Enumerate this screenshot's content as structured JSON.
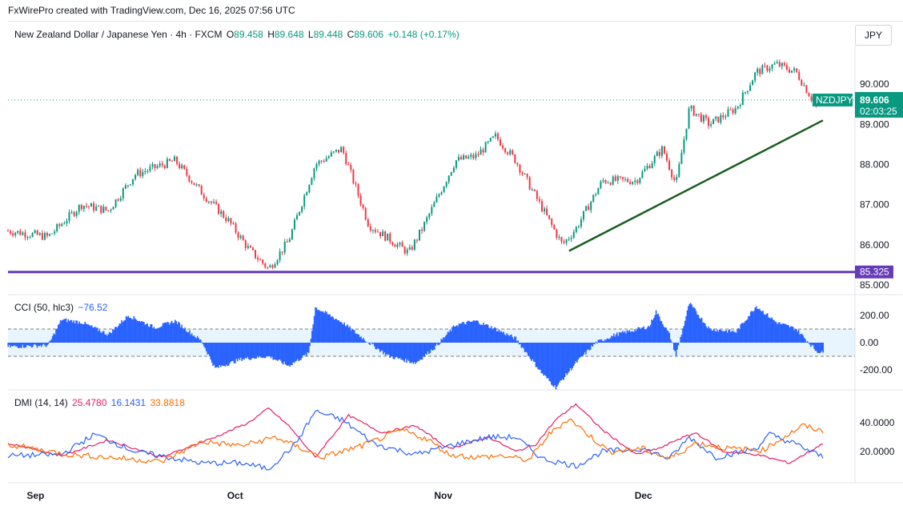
{
  "header": "FxWirePro created with TradingView.com, Dec 16, 2025 07:56 UTC",
  "legend": {
    "name": "New Zealand Dollar / Japanese Yen · 4h · FXCM",
    "o_label": "O",
    "o": "89.458",
    "h_label": "H",
    "h": "89.648",
    "l_label": "L",
    "l": "89.448",
    "c_label": "C",
    "c": "89.606",
    "chg": "+0.148 (+0.17%)"
  },
  "currency_button": "JPY",
  "colors": {
    "up": "#089981",
    "down": "#f23645",
    "support": "#673ab7",
    "trend": "#1b5e20",
    "cci": "#2962ff",
    "plus_di": "#2962ff",
    "minus_di": "#e91e63",
    "adx": "#ff6d00"
  },
  "chart_data": [
    {
      "type": "candlestick",
      "symbol": "NZDJPY",
      "timeframe": "4h",
      "ylim": [
        85.0,
        91.0
      ],
      "yticks": [
        "90.000",
        "89.000",
        "88.000",
        "87.000",
        "86.000",
        "85.000"
      ],
      "x_labels": [
        "Sep",
        "Oct",
        "Nov",
        "Dec"
      ],
      "last_price": "89.606",
      "last_label": "NZDJPY",
      "countdown": "02:03:25",
      "support_level": "85.325",
      "anchors": [
        {
          "date": "2025-08-28",
          "price": 86.35
        },
        {
          "date": "2025-09-03",
          "price": 86.2
        },
        {
          "date": "2025-09-08",
          "price": 87.0
        },
        {
          "date": "2025-09-12",
          "price": 86.85
        },
        {
          "date": "2025-09-16",
          "price": 87.75
        },
        {
          "date": "2025-09-22",
          "price": 88.1
        },
        {
          "date": "2025-09-26",
          "price": 87.3
        },
        {
          "date": "2025-09-30",
          "price": 86.6
        },
        {
          "date": "2025-10-03",
          "price": 85.9
        },
        {
          "date": "2025-10-06",
          "price": 85.4
        },
        {
          "date": "2025-10-09",
          "price": 86.1
        },
        {
          "date": "2025-10-13",
          "price": 88.0
        },
        {
          "date": "2025-10-17",
          "price": 88.4
        },
        {
          "date": "2025-10-21",
          "price": 86.5
        },
        {
          "date": "2025-10-27",
          "price": 85.8
        },
        {
          "date": "2025-10-29",
          "price": 86.4
        },
        {
          "date": "2025-11-03",
          "price": 88.1
        },
        {
          "date": "2025-11-06",
          "price": 88.2
        },
        {
          "date": "2025-11-09",
          "price": 88.7
        },
        {
          "date": "2025-11-12",
          "price": 88.1
        },
        {
          "date": "2025-11-16",
          "price": 86.9
        },
        {
          "date": "2025-11-19",
          "price": 86.0
        },
        {
          "date": "2025-11-21",
          "price": 86.4
        },
        {
          "date": "2025-11-25",
          "price": 87.6
        },
        {
          "date": "2025-11-30",
          "price": 87.6
        },
        {
          "date": "2025-12-04",
          "price": 88.4
        },
        {
          "date": "2025-12-06",
          "price": 87.5
        },
        {
          "date": "2025-12-08",
          "price": 89.4
        },
        {
          "date": "2025-12-11",
          "price": 89.0
        },
        {
          "date": "2025-12-15",
          "price": 89.4
        },
        {
          "date": "2025-12-18",
          "price": 90.3
        },
        {
          "date": "2025-12-21",
          "price": 90.5
        },
        {
          "date": "2025-12-24",
          "price": 90.3
        },
        {
          "date": "2025-12-27",
          "price": 89.45
        },
        {
          "date": "2025-12-28",
          "price": 89.6
        }
      ],
      "trendline": [
        {
          "date": "2025-11-20",
          "price": 85.85
        },
        {
          "date": "2025-12-28",
          "price": 89.1
        }
      ]
    },
    {
      "type": "histogram",
      "indicator": "CCI (50, hlc3)",
      "label": "CCI (50, hlc3)",
      "value": "−76.52",
      "ylim": [
        -330,
        330
      ],
      "yticks": [
        "200.00",
        "0.00",
        "-200.00"
      ],
      "bands": [
        100,
        -100
      ],
      "anchors": [
        {
          "date": "2025-08-28",
          "value": -30
        },
        {
          "date": "2025-09-03",
          "value": -20
        },
        {
          "date": "2025-09-05",
          "value": 170
        },
        {
          "date": "2025-09-08",
          "value": 150
        },
        {
          "date": "2025-09-12",
          "value": 60
        },
        {
          "date": "2025-09-15",
          "value": 200
        },
        {
          "date": "2025-09-19",
          "value": 110
        },
        {
          "date": "2025-09-22",
          "value": 160
        },
        {
          "date": "2025-09-26",
          "value": 10
        },
        {
          "date": "2025-09-28",
          "value": -190
        },
        {
          "date": "2025-10-02",
          "value": -120
        },
        {
          "date": "2025-10-06",
          "value": -100
        },
        {
          "date": "2025-10-09",
          "value": -170
        },
        {
          "date": "2025-10-12",
          "value": -80
        },
        {
          "date": "2025-10-13",
          "value": 260
        },
        {
          "date": "2025-10-17",
          "value": 150
        },
        {
          "date": "2025-10-21",
          "value": 0
        },
        {
          "date": "2025-10-24",
          "value": -100
        },
        {
          "date": "2025-10-28",
          "value": -150
        },
        {
          "date": "2025-10-31",
          "value": -30
        },
        {
          "date": "2025-11-03",
          "value": 130
        },
        {
          "date": "2025-11-06",
          "value": 160
        },
        {
          "date": "2025-11-09",
          "value": 100
        },
        {
          "date": "2025-11-12",
          "value": 30
        },
        {
          "date": "2025-11-16",
          "value": -230
        },
        {
          "date": "2025-11-18",
          "value": -330
        },
        {
          "date": "2025-11-21",
          "value": -150
        },
        {
          "date": "2025-11-24",
          "value": 0
        },
        {
          "date": "2025-11-27",
          "value": 60
        },
        {
          "date": "2025-12-02",
          "value": 120
        },
        {
          "date": "2025-12-03",
          "value": 230
        },
        {
          "date": "2025-12-05",
          "value": 60
        },
        {
          "date": "2025-12-06",
          "value": -90
        },
        {
          "date": "2025-12-08",
          "value": 290
        },
        {
          "date": "2025-12-11",
          "value": 100
        },
        {
          "date": "2025-12-15",
          "value": 80
        },
        {
          "date": "2025-12-18",
          "value": 270
        },
        {
          "date": "2025-12-21",
          "value": 150
        },
        {
          "date": "2025-12-24",
          "value": 100
        },
        {
          "date": "2025-12-27",
          "value": -60
        },
        {
          "date": "2025-12-28",
          "value": -77
        }
      ]
    },
    {
      "type": "line",
      "indicator": "DMI (14, 14)",
      "label": "DMI (14, 14)",
      "values_text": [
        "25.4780",
        "16.1431",
        "33.8818"
      ],
      "ylim": [
        0,
        60
      ],
      "yticks": [
        "40.0000",
        "20.0000"
      ],
      "series": [
        {
          "values_key": "minus",
          "value": "25.4780",
          "anchors": [
            {
              "date": "2025-08-28",
              "value": 26
            },
            {
              "date": "2025-09-05",
              "value": 17
            },
            {
              "date": "2025-09-12",
              "value": 28
            },
            {
              "date": "2025-09-20",
              "value": 16
            },
            {
              "date": "2025-09-28",
              "value": 30
            },
            {
              "date": "2025-10-03",
              "value": 40
            },
            {
              "date": "2025-10-06",
              "value": 50
            },
            {
              "date": "2025-10-09",
              "value": 38
            },
            {
              "date": "2025-10-13",
              "value": 16
            },
            {
              "date": "2025-10-18",
              "value": 45
            },
            {
              "date": "2025-10-23",
              "value": 33
            },
            {
              "date": "2025-10-28",
              "value": 38
            },
            {
              "date": "2025-11-02",
              "value": 22
            },
            {
              "date": "2025-11-08",
              "value": 30
            },
            {
              "date": "2025-11-12",
              "value": 20
            },
            {
              "date": "2025-11-15",
              "value": 25
            },
            {
              "date": "2025-11-18",
              "value": 42
            },
            {
              "date": "2025-11-21",
              "value": 53
            },
            {
              "date": "2025-11-25",
              "value": 35
            },
            {
              "date": "2025-11-30",
              "value": 18
            },
            {
              "date": "2025-12-04",
              "value": 23
            },
            {
              "date": "2025-12-06",
              "value": 28
            },
            {
              "date": "2025-12-09",
              "value": 33
            },
            {
              "date": "2025-12-13",
              "value": 20
            },
            {
              "date": "2025-12-18",
              "value": 18
            },
            {
              "date": "2025-12-23",
              "value": 12
            },
            {
              "date": "2025-12-28",
              "value": 25.5
            }
          ]
        },
        {
          "values_key": "plus",
          "value": "16.1431",
          "anchors": [
            {
              "date": "2025-08-28",
              "value": 17
            },
            {
              "date": "2025-09-05",
              "value": 18
            },
            {
              "date": "2025-09-10",
              "value": 32
            },
            {
              "date": "2025-09-16",
              "value": 20
            },
            {
              "date": "2025-09-26",
              "value": 12
            },
            {
              "date": "2025-10-02",
              "value": 12
            },
            {
              "date": "2025-10-06",
              "value": 8
            },
            {
              "date": "2025-10-10",
              "value": 25
            },
            {
              "date": "2025-10-13",
              "value": 48
            },
            {
              "date": "2025-10-17",
              "value": 42
            },
            {
              "date": "2025-10-22",
              "value": 25
            },
            {
              "date": "2025-10-28",
              "value": 18
            },
            {
              "date": "2025-11-03",
              "value": 25
            },
            {
              "date": "2025-11-08",
              "value": 30
            },
            {
              "date": "2025-11-12",
              "value": 30
            },
            {
              "date": "2025-11-16",
              "value": 15
            },
            {
              "date": "2025-11-21",
              "value": 10
            },
            {
              "date": "2025-11-25",
              "value": 20
            },
            {
              "date": "2025-12-01",
              "value": 22
            },
            {
              "date": "2025-12-05",
              "value": 15
            },
            {
              "date": "2025-12-08",
              "value": 30
            },
            {
              "date": "2025-12-12",
              "value": 16
            },
            {
              "date": "2025-12-18",
              "value": 22
            },
            {
              "date": "2025-12-20",
              "value": 32
            },
            {
              "date": "2025-12-24",
              "value": 25
            },
            {
              "date": "2025-12-28",
              "value": 16.1
            }
          ]
        },
        {
          "values_key": "adx",
          "value": "33.8818",
          "anchors": [
            {
              "date": "2025-08-28",
              "value": 25
            },
            {
              "date": "2025-09-06",
              "value": 18
            },
            {
              "date": "2025-09-12",
              "value": 16
            },
            {
              "date": "2025-09-20",
              "value": 13
            },
            {
              "date": "2025-09-26",
              "value": 27
            },
            {
              "date": "2025-10-02",
              "value": 24
            },
            {
              "date": "2025-10-07",
              "value": 30
            },
            {
              "date": "2025-10-10",
              "value": 24
            },
            {
              "date": "2025-10-14",
              "value": 16
            },
            {
              "date": "2025-10-20",
              "value": 24
            },
            {
              "date": "2025-10-26",
              "value": 35
            },
            {
              "date": "2025-10-30",
              "value": 28
            },
            {
              "date": "2025-11-02",
              "value": 18
            },
            {
              "date": "2025-11-06",
              "value": 16
            },
            {
              "date": "2025-11-10",
              "value": 17
            },
            {
              "date": "2025-11-14",
              "value": 14
            },
            {
              "date": "2025-11-17",
              "value": 32
            },
            {
              "date": "2025-11-20",
              "value": 43
            },
            {
              "date": "2025-11-22",
              "value": 35
            },
            {
              "date": "2025-11-26",
              "value": 20
            },
            {
              "date": "2025-12-01",
              "value": 22
            },
            {
              "date": "2025-12-05",
              "value": 15
            },
            {
              "date": "2025-12-09",
              "value": 26
            },
            {
              "date": "2025-12-14",
              "value": 22
            },
            {
              "date": "2025-12-19",
              "value": 21
            },
            {
              "date": "2025-12-25",
              "value": 38
            },
            {
              "date": "2025-12-28",
              "value": 33.9
            }
          ]
        }
      ]
    }
  ]
}
